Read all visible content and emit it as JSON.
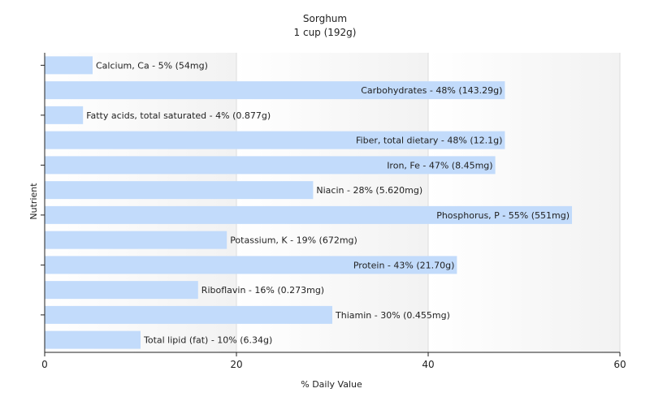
{
  "chart_data": {
    "type": "bar",
    "orientation": "horizontal",
    "title": "Sorghum",
    "subtitle": "1 cup (192g)",
    "xlabel": "% Daily Value",
    "ylabel": "Nutrient",
    "xlim": [
      0,
      60
    ],
    "xticks": [
      0,
      20,
      40,
      60
    ],
    "grid": true,
    "bar_color": "#c2dbfb",
    "categories": [
      "Calcium, Ca",
      "Carbohydrates",
      "Fatty acids, total saturated",
      "Fiber, total dietary",
      "Iron, Fe",
      "Niacin",
      "Phosphorus, P",
      "Potassium, K",
      "Protein",
      "Riboflavin",
      "Thiamin",
      "Total lipid (fat)"
    ],
    "values": [
      5,
      48,
      4,
      48,
      47,
      28,
      55,
      19,
      43,
      16,
      30,
      10
    ],
    "data_labels": [
      "Calcium, Ca - 5% (54mg)",
      "Carbohydrates - 48% (143.29g)",
      "Fatty acids, total saturated - 4% (0.877g)",
      "Fiber, total dietary - 48% (12.1g)",
      "Iron, Fe - 47% (8.45mg)",
      "Niacin - 28% (5.620mg)",
      "Phosphorus, P - 55% (551mg)",
      "Potassium, K - 19% (672mg)",
      "Protein - 43% (21.70g)",
      "Riboflavin - 16% (0.273mg)",
      "Thiamin - 30% (0.455mg)",
      "Total lipid (fat) - 10% (6.34g)"
    ]
  }
}
